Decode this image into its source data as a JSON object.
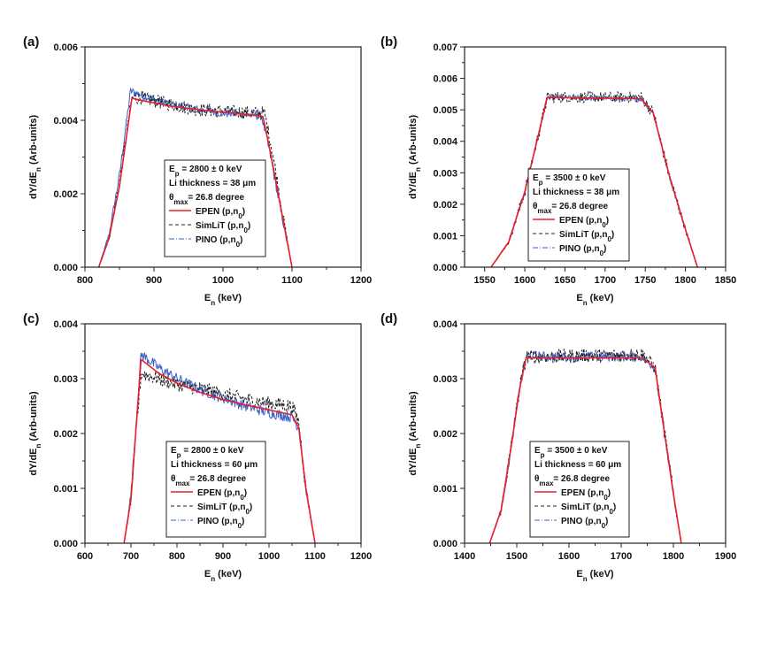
{
  "chart_data": [
    {
      "panel": "(a)",
      "type": "line",
      "xlabel": "E",
      "xlabel_sub": "n",
      "xlabel_unit": "(keV)",
      "ylabel": "dY/dE",
      "ylabel_sub": "n",
      "ylabel_unit": "(Arb-units)",
      "xlim": [
        800,
        1200
      ],
      "ylim": [
        0,
        0.006
      ],
      "xticks": [
        "800",
        "900",
        "1000",
        "1100",
        "1200"
      ],
      "yticks": [
        "0.000",
        "0.002",
        "0.004",
        "0.006"
      ],
      "legend": {
        "position": "center-bottom",
        "lines": [
          {
            "pre": "E",
            "sub": "p",
            "post": " = 2800 ± 0 keV"
          },
          {
            "pre": "Li thickness = 38 μm",
            "sub": "",
            "post": ""
          },
          {
            "pre": "θ",
            "sub": "max",
            "post": "= 26.8 degree"
          }
        ],
        "entries": [
          {
            "label": "EPEN (p,n",
            "sub": "0",
            "tail": ")",
            "color": "#e8202a",
            "dash": ""
          },
          {
            "label": "SimLiT (p,n",
            "sub": "0",
            "tail": ")",
            "color": "#222222",
            "dash": "4,3"
          },
          {
            "label": "PINO (p,n",
            "sub": "0",
            "tail": ")",
            "color": "#3b5fc9",
            "dash": "6,2,1,2"
          }
        ]
      },
      "series": [
        {
          "name": "EPEN (p,n0)",
          "x": [
            820,
            835,
            850,
            868,
            880,
            920,
            960,
            1000,
            1040,
            1058,
            1070,
            1085,
            1100
          ],
          "y": [
            0,
            0.0008,
            0.0022,
            0.0046,
            0.00455,
            0.0044,
            0.0043,
            0.00422,
            0.00415,
            0.0041,
            0.003,
            0.0015,
            0
          ]
        },
        {
          "name": "SimLiT (p,n0)",
          "x": [
            820,
            835,
            850,
            868,
            880,
            920,
            960,
            1000,
            1040,
            1060,
            1072,
            1086,
            1100
          ],
          "y": [
            0,
            0.0008,
            0.0023,
            0.0046,
            0.00462,
            0.00445,
            0.0043,
            0.00425,
            0.0042,
            0.0042,
            0.0031,
            0.0015,
            0
          ],
          "noise": 0.00018
        },
        {
          "name": "PINO (p,n0)",
          "x": [
            820,
            835,
            850,
            866,
            880,
            920,
            960,
            1000,
            1040,
            1056,
            1068,
            1084,
            1100
          ],
          "y": [
            0,
            0.0009,
            0.0025,
            0.0048,
            0.0047,
            0.00445,
            0.0043,
            0.0042,
            0.00415,
            0.00412,
            0.0031,
            0.0015,
            0
          ],
          "noise": 0.00012
        }
      ]
    },
    {
      "panel": "(b)",
      "type": "line",
      "xlabel": "E",
      "xlabel_sub": "n",
      "xlabel_unit": "(keV)",
      "ylabel": "dY/dE",
      "ylabel_sub": "n",
      "ylabel_unit": "(Arb-units)",
      "xlim": [
        1525,
        1850
      ],
      "ylim": [
        0,
        0.007
      ],
      "xticks": [
        "1550",
        "1600",
        "1650",
        "1700",
        "1750",
        "1800",
        "1850"
      ],
      "yticks": [
        "0.000",
        "0.001",
        "0.002",
        "0.003",
        "0.004",
        "0.005",
        "0.006",
        "0.007"
      ],
      "legend": {
        "position": "center-bottom",
        "lines": [
          {
            "pre": "E",
            "sub": "p",
            "post": " = 3500 ± 0 keV"
          },
          {
            "pre": "Li thickness = 38 μm",
            "sub": "",
            "post": ""
          },
          {
            "pre": "θ",
            "sub": "max",
            "post": "= 26.8 degree"
          }
        ],
        "entries": [
          {
            "label": "EPEN (p,n",
            "sub": "0",
            "tail": ")",
            "color": "#e8202a",
            "dash": ""
          },
          {
            "label": "SimLiT (p,n",
            "sub": "0",
            "tail": ")",
            "color": "#222222",
            "dash": "4,3"
          },
          {
            "label": "PINO (p,n",
            "sub": "0",
            "tail": ")",
            "color": "#3b5fc9",
            "dash": "6,2,1,2"
          }
        ]
      },
      "series": [
        {
          "name": "EPEN (p,n0)",
          "x": [
            1558,
            1580,
            1600,
            1615,
            1628,
            1660,
            1700,
            1745,
            1760,
            1780,
            1800,
            1815
          ],
          "y": [
            0,
            0.0008,
            0.0024,
            0.004,
            0.0054,
            0.00538,
            0.00537,
            0.00535,
            0.0049,
            0.0029,
            0.0012,
            0
          ]
        },
        {
          "name": "SimLiT (p,n0)",
          "x": [
            1558,
            1580,
            1600,
            1615,
            1628,
            1660,
            1700,
            1745,
            1760,
            1780,
            1800,
            1815
          ],
          "y": [
            0,
            0.0008,
            0.0024,
            0.004,
            0.0054,
            0.0054,
            0.0054,
            0.0054,
            0.0049,
            0.0029,
            0.0012,
            0
          ],
          "noise": 0.00018
        },
        {
          "name": "PINO (p,n0)",
          "x": [
            1558,
            1580,
            1600,
            1615,
            1628,
            1660,
            1700,
            1745,
            1760,
            1780,
            1800,
            1815
          ],
          "y": [
            0,
            0.0008,
            0.0024,
            0.004,
            0.0054,
            0.00538,
            0.00537,
            0.00535,
            0.0049,
            0.0029,
            0.0012,
            0
          ],
          "noise": 9e-05
        }
      ]
    },
    {
      "panel": "(c)",
      "type": "line",
      "xlabel": "E",
      "xlabel_sub": "n",
      "xlabel_unit": "(keV)",
      "ylabel": "dY/dE",
      "ylabel_sub": "n",
      "ylabel_unit": "(Arb-units)",
      "xlim": [
        600,
        1200
      ],
      "ylim": [
        0,
        0.004
      ],
      "xticks": [
        "600",
        "700",
        "800",
        "900",
        "1000",
        "1100",
        "1200"
      ],
      "yticks": [
        "0.000",
        "0.001",
        "0.002",
        "0.003",
        "0.004"
      ],
      "legend": {
        "position": "center-bottom",
        "lines": [
          {
            "pre": "E",
            "sub": "p",
            "post": " = 2800 ± 0 keV"
          },
          {
            "pre": "Li thickness = 60 μm",
            "sub": "",
            "post": ""
          },
          {
            "pre": "θ",
            "sub": "max",
            "post": "= 26.8 degree"
          }
        ],
        "entries": [
          {
            "label": "EPEN (p,n",
            "sub": "0",
            "tail": ")",
            "color": "#e8202a",
            "dash": ""
          },
          {
            "label": "SimLiT (p,n",
            "sub": "0",
            "tail": ")",
            "color": "#222222",
            "dash": "4,3"
          },
          {
            "label": "PINO (p,n",
            "sub": "0",
            "tail": ")",
            "color": "#3b5fc9",
            "dash": "6,2,1,2"
          }
        ]
      },
      "series": [
        {
          "name": "EPEN (p,n0)",
          "x": [
            685,
            700,
            712,
            722,
            760,
            800,
            850,
            900,
            950,
            1000,
            1050,
            1065,
            1080,
            1100
          ],
          "y": [
            0,
            0.0008,
            0.0022,
            0.00335,
            0.0031,
            0.00292,
            0.00275,
            0.00262,
            0.00252,
            0.00243,
            0.00234,
            0.0021,
            0.001,
            0
          ]
        },
        {
          "name": "SimLiT (p,n0)",
          "x": [
            685,
            700,
            712,
            722,
            760,
            800,
            850,
            900,
            950,
            1000,
            1050,
            1065,
            1080,
            1100
          ],
          "y": [
            0,
            0.0008,
            0.0021,
            0.0031,
            0.003,
            0.0029,
            0.00282,
            0.00272,
            0.00262,
            0.00255,
            0.0025,
            0.0022,
            0.001,
            0
          ],
          "noise": 0.00013
        },
        {
          "name": "PINO (p,n0)",
          "x": [
            685,
            700,
            712,
            722,
            760,
            800,
            850,
            900,
            950,
            1000,
            1050,
            1065,
            1080,
            1100
          ],
          "y": [
            0,
            0.0009,
            0.0023,
            0.00345,
            0.0032,
            0.003,
            0.0028,
            0.00265,
            0.0025,
            0.00238,
            0.0023,
            0.0021,
            0.001,
            0
          ],
          "noise": 0.0001
        }
      ]
    },
    {
      "panel": "(d)",
      "type": "line",
      "xlabel": "E",
      "xlabel_sub": "n",
      "xlabel_unit": "(keV)",
      "ylabel": "dY/dE",
      "ylabel_sub": "n",
      "ylabel_unit": "(Arb-units)",
      "xlim": [
        1400,
        1900
      ],
      "ylim": [
        0,
        0.004
      ],
      "xticks": [
        "1400",
        "1500",
        "1600",
        "1700",
        "1800",
        "1900"
      ],
      "yticks": [
        "0.000",
        "0.001",
        "0.002",
        "0.003",
        "0.004"
      ],
      "legend": {
        "position": "center-bottom",
        "lines": [
          {
            "pre": "E",
            "sub": "p",
            "post": " = 3500 ± 0 keV"
          },
          {
            "pre": "Li thickness = 60 μm",
            "sub": "",
            "post": ""
          },
          {
            "pre": "θ",
            "sub": "max",
            "post": "= 26.8 degree"
          }
        ],
        "entries": [
          {
            "label": "EPEN (p,n",
            "sub": "0",
            "tail": ")",
            "color": "#e8202a",
            "dash": ""
          },
          {
            "label": "SimLiT (p,n",
            "sub": "0",
            "tail": ")",
            "color": "#222222",
            "dash": "4,3"
          },
          {
            "label": "PINO (p,n",
            "sub": "0",
            "tail": ")",
            "color": "#3b5fc9",
            "dash": "6,2,1,2"
          }
        ]
      },
      "series": [
        {
          "name": "EPEN (p,n0)",
          "x": [
            1448,
            1470,
            1490,
            1505,
            1518,
            1560,
            1620,
            1680,
            1740,
            1765,
            1780,
            1800,
            1815
          ],
          "y": [
            0,
            0.0006,
            0.0018,
            0.0028,
            0.00338,
            0.00338,
            0.00338,
            0.00338,
            0.00338,
            0.0032,
            0.0022,
            0.0009,
            0
          ]
        },
        {
          "name": "SimLiT (p,n0)",
          "x": [
            1448,
            1470,
            1490,
            1505,
            1518,
            1560,
            1620,
            1680,
            1740,
            1765,
            1780,
            1800,
            1815
          ],
          "y": [
            0,
            0.0006,
            0.0018,
            0.0028,
            0.0034,
            0.0034,
            0.00342,
            0.00342,
            0.00345,
            0.0032,
            0.0022,
            0.0009,
            0
          ],
          "noise": 0.00013
        },
        {
          "name": "PINO (p,n0)",
          "x": [
            1448,
            1470,
            1490,
            1505,
            1518,
            1560,
            1620,
            1680,
            1740,
            1765,
            1780,
            1800,
            1815
          ],
          "y": [
            0,
            0.0006,
            0.0018,
            0.0028,
            0.00342,
            0.0034,
            0.0034,
            0.0034,
            0.0034,
            0.0032,
            0.0022,
            0.0009,
            0
          ],
          "noise": 9e-05
        }
      ]
    }
  ]
}
